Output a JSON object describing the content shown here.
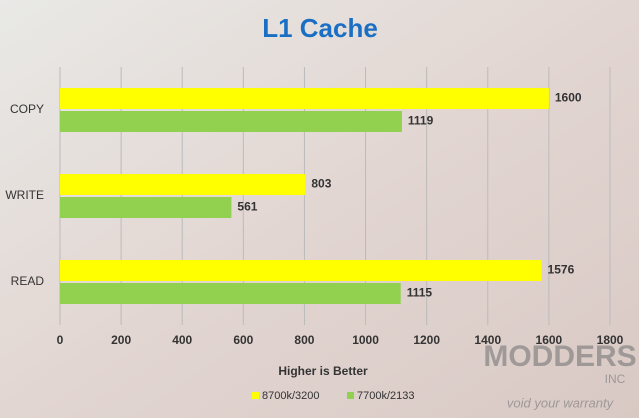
{
  "chart_data": {
    "type": "hbar",
    "title": "L1 Cache",
    "x_label": "Higher is Better",
    "categories": [
      "COPY",
      "WRITE",
      "READ"
    ],
    "series": [
      {
        "name": "8700k/3200",
        "color": "#ffff00",
        "values": [
          1600,
          803,
          1576
        ]
      },
      {
        "name": "7700k/2133",
        "color": "#92d050",
        "values": [
          1119,
          561,
          1115
        ]
      }
    ],
    "xlim": [
      0,
      1800
    ],
    "xticks": [
      0,
      200,
      400,
      600,
      800,
      1000,
      1200,
      1400,
      1600,
      1800
    ],
    "grid": true,
    "legend": "bottom",
    "watermark": [
      "MODDERS",
      "INC",
      "void your warranty"
    ]
  }
}
